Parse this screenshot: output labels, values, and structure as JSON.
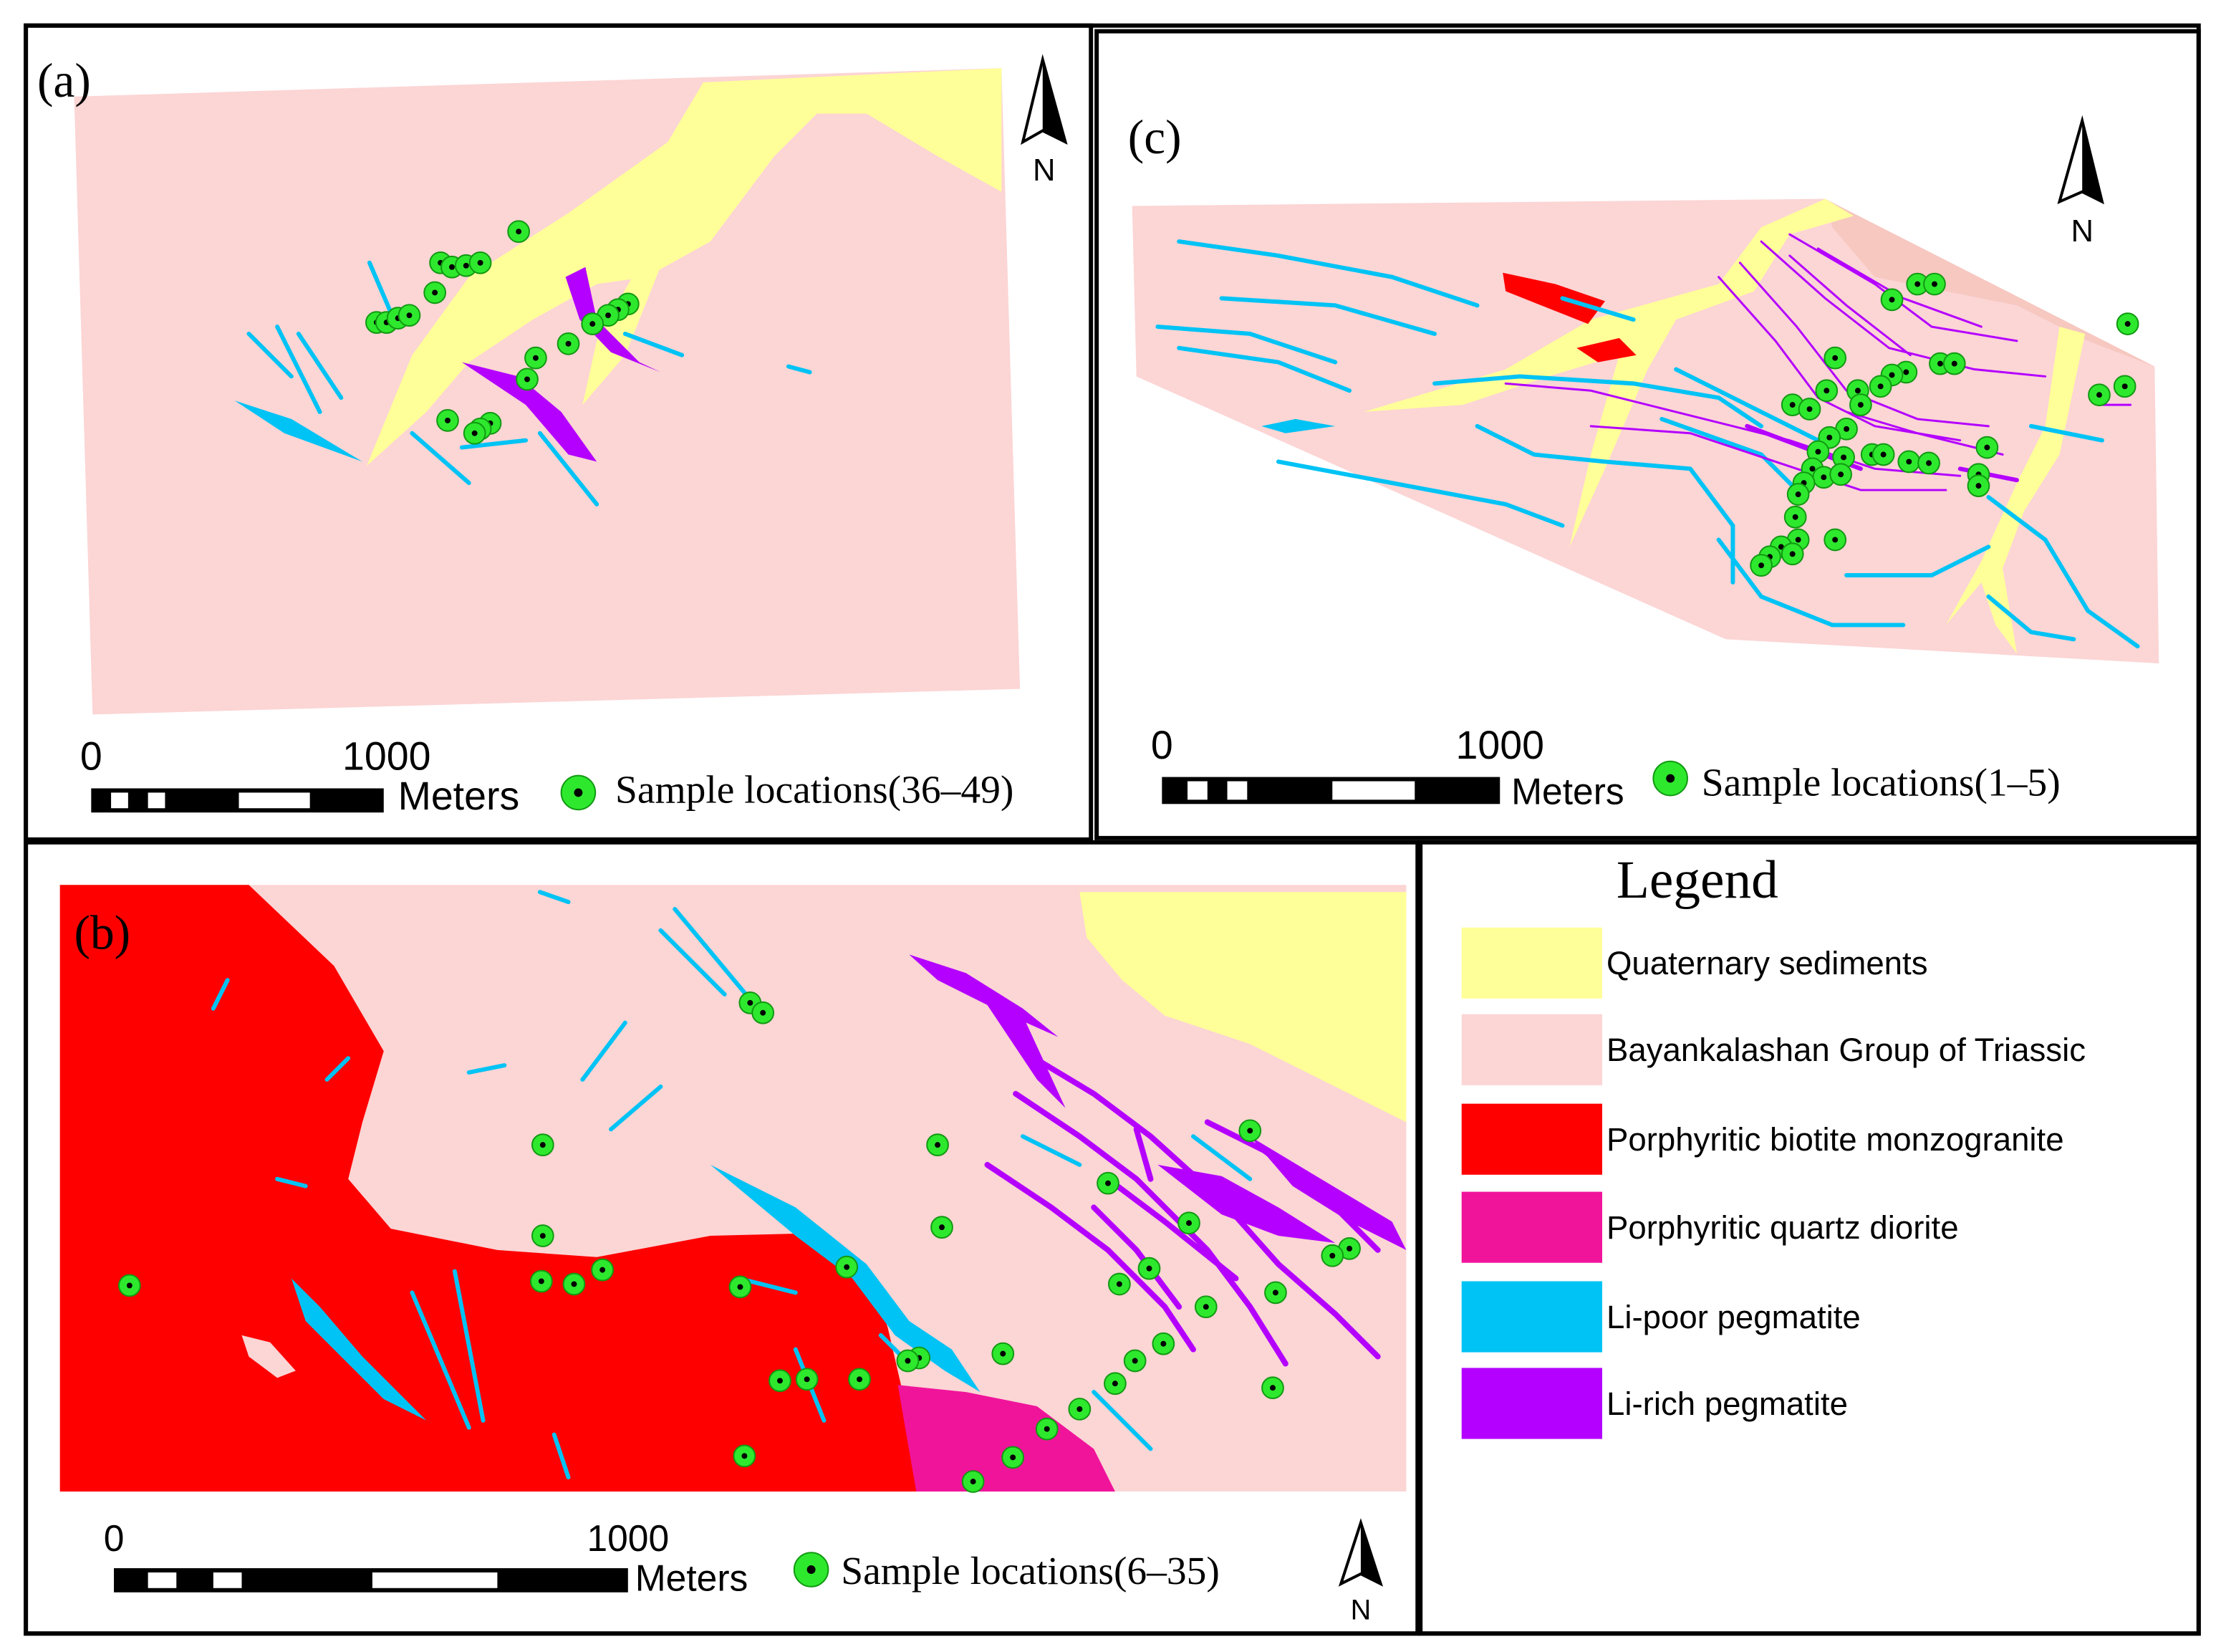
{
  "panels": [
    {
      "label": "(a)",
      "north": "N",
      "scale": {
        "ticks": [
          "0",
          "1000"
        ],
        "unit": "Meters"
      },
      "samples": "Sample locations(36–49)"
    },
    {
      "label": "(c)",
      "north": "N",
      "scale": {
        "ticks": [
          "0",
          "1000"
        ],
        "unit": "Meters"
      },
      "samples": "Sample locations(1–5)"
    },
    {
      "label": "(b)",
      "north": "N",
      "scale": {
        "ticks": [
          "0",
          "1000"
        ],
        "unit": "Meters"
      },
      "samples": "Sample locations(6–35)"
    }
  ],
  "legend": {
    "title": "Legend",
    "items": [
      {
        "label": "Quaternary sediments",
        "color": "#ffff99"
      },
      {
        "label": "Bayankalashan Group of Triassic",
        "color": "#fcd5d5"
      },
      {
        "label": "Porphyritic biotite monzogranite",
        "color": "#ff0000"
      },
      {
        "label": "Porphyritic quartz diorite",
        "color": "#f0149b"
      },
      {
        "label": "Li-poor pegmatite",
        "color": "#00c3f5"
      },
      {
        "label": "Li-rich pegmatite",
        "color": "#b400ff"
      }
    ]
  }
}
